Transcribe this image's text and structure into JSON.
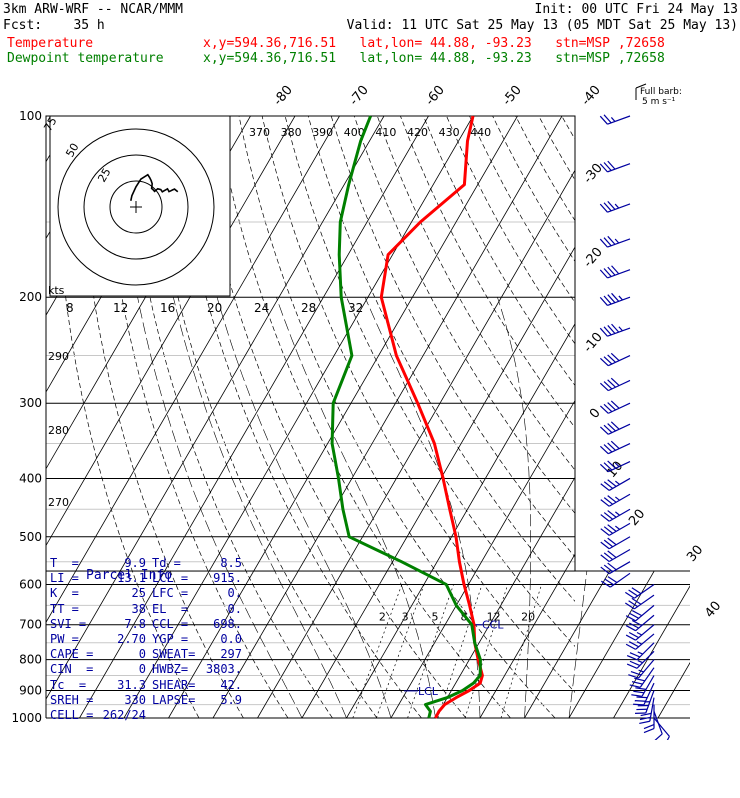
{
  "header": {
    "line1_left": "3km ARW-WRF -- NCAR/MMM",
    "line1_right": "Init: 00 UTC Fri 24 May 13",
    "line2_left": "Fcst:    35 h",
    "line2_right": "Valid: 11 UTC Sat 25 May 13 (05 MDT Sat 25 May 13)",
    "legend": [
      {
        "label": "Temperature",
        "info": "x,y=594.36,716.51   lat,lon= 44.88, -93.23   stn=MSP ,72658",
        "color": "#ff0000"
      },
      {
        "label": "Dewpoint temperature",
        "info": "x,y=594.36,716.51   lat,lon= 44.88, -93.23   stn=MSP ,72658",
        "color": "#008000"
      }
    ]
  },
  "wind_legend": {
    "line1": "Full barb:",
    "line2": "5 m s⁻¹"
  },
  "hodograph": {
    "units": "kts",
    "ring_labels": [
      "25",
      "50",
      "75"
    ]
  },
  "mixing_ratio_labels": [
    "2",
    "3",
    "5",
    "8",
    "12",
    "20"
  ],
  "theta_labels_top": [
    "370",
    "380",
    "390",
    "400",
    "410",
    "420",
    "430",
    "440"
  ],
  "theta_labels_left": [
    "290",
    "280",
    "270"
  ],
  "skew_temp_labels": [
    "-80",
    "-70",
    "-60",
    "-50",
    "-40",
    "-30",
    "-20",
    "-10",
    "0",
    "10",
    "20",
    "30",
    "40"
  ],
  "lcl_label": "LCL",
  "ccl_label": "CCL",
  "parcel": {
    "title": "Parcel Info",
    "rows": [
      [
        "T  =",
        "9.9",
        "Td =",
        "8.5"
      ],
      [
        "LI =",
        "13.1",
        "LCL =",
        "915."
      ],
      [
        "K  =",
        "25",
        "LFC =",
        "0."
      ],
      [
        "TT =",
        "38",
        "EL  =",
        "0."
      ],
      [
        "SVI =",
        "7.8",
        "CCL =",
        "698."
      ],
      [
        "PW =",
        "2.70",
        "YGP =",
        "0.0"
      ],
      [
        "CAPE =",
        "0",
        "SWEAT=",
        "297"
      ],
      [
        "CIN  =",
        "0",
        "HWBZ=",
        "3803."
      ],
      [
        "Tc  =",
        "31.3",
        "SHEAR=",
        "42."
      ],
      [
        "SREH =",
        "330",
        "LAPSE=",
        "5.9"
      ],
      [
        "CELL =",
        "262/24",
        "",
        ""
      ]
    ]
  },
  "chart_data": {
    "type": "line",
    "title": "",
    "xlabel": "",
    "ylabel": "",
    "pressure_levels": [
      "100",
      "200",
      "300",
      "400",
      "500",
      "600",
      "700",
      "800",
      "900",
      "1000"
    ],
    "hodo_scale_labels": [
      "8",
      "12",
      "16",
      "20",
      "24",
      "28",
      "32"
    ],
    "series": [
      {
        "name": "Temperature",
        "color": "#ff0000",
        "pressure": [
          1000,
          975,
          950,
          925,
          900,
          875,
          850,
          800,
          750,
          700,
          650,
          600,
          550,
          500,
          450,
          400,
          350,
          300,
          250,
          200,
          170,
          150,
          130,
          110,
          100
        ],
        "temperature": [
          10.0,
          9.9,
          10.3,
          12.0,
          14.0,
          15.5,
          15.0,
          12.0,
          9.0,
          6.5,
          3.0,
          -1.0,
          -5.0,
          -9.0,
          -14.0,
          -19.5,
          -26.0,
          -35.0,
          -46.0,
          -57.0,
          -61.0,
          -58.0,
          -53.0,
          -58.0,
          -60.0
        ]
      },
      {
        "name": "Dewpoint temperature",
        "color": "#008000",
        "pressure": [
          1000,
          975,
          950,
          925,
          900,
          875,
          850,
          800,
          750,
          700,
          650,
          600,
          550,
          500,
          450,
          400,
          350,
          300,
          250,
          200,
          170,
          150,
          130,
          110,
          100
        ],
        "temperature": [
          8.5,
          8.0,
          6.0,
          10.0,
          12.5,
          14.0,
          14.5,
          12.5,
          9.0,
          6.0,
          0.0,
          -5.0,
          -18.0,
          -33.0,
          -38.0,
          -43.0,
          -49.0,
          -54.0,
          -56.0,
          -66.0,
          -72.0,
          -76.0,
          -79.0,
          -82.0,
          -83.0
        ]
      }
    ],
    "wind_profile": {
      "pressure": [
        1000,
        975,
        950,
        925,
        900,
        875,
        850,
        825,
        800,
        775,
        750,
        725,
        700,
        675,
        650,
        625,
        600,
        575,
        550,
        525,
        500,
        475,
        450,
        425,
        400,
        375,
        350,
        325,
        300,
        275,
        250,
        225,
        200,
        180,
        160,
        140,
        120,
        100
      ],
      "speed_ms": [
        4,
        6,
        10,
        14,
        17,
        16,
        15,
        14,
        12,
        12,
        12,
        12,
        13,
        14,
        14,
        15,
        15,
        15,
        15,
        16,
        16,
        17,
        17,
        17,
        18,
        18,
        19,
        19,
        20,
        20,
        21,
        22,
        22,
        20,
        18,
        17,
        15,
        12
      ],
      "direction_deg": [
        140,
        160,
        180,
        190,
        200,
        205,
        210,
        215,
        220,
        225,
        225,
        230,
        230,
        230,
        230,
        235,
        235,
        235,
        240,
        240,
        240,
        240,
        240,
        240,
        240,
        245,
        245,
        245,
        245,
        245,
        245,
        250,
        250,
        250,
        250,
        250,
        250,
        250
      ]
    }
  }
}
